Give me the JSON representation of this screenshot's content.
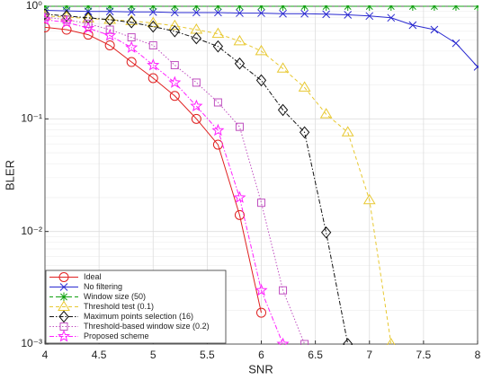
{
  "chart_data": {
    "type": "line",
    "xlabel": "SNR",
    "ylabel": "BLER",
    "x": [
      4.0,
      4.2,
      4.4,
      4.6,
      4.8,
      5.0,
      5.2,
      5.4,
      5.6,
      5.8,
      6.0,
      6.2,
      6.4,
      6.6,
      6.8,
      7.0,
      7.2,
      7.4,
      7.6,
      7.8,
      8.0
    ],
    "xlim": [
      4,
      8
    ],
    "xticks": [
      4,
      4.5,
      5,
      5.5,
      6,
      6.5,
      7,
      7.5,
      8
    ],
    "ylim": [
      0.001,
      1
    ],
    "log_y": true,
    "grid": true,
    "legend": "lower left",
    "yticks": [
      {
        "value": 0.001,
        "label": "10⁻³"
      },
      {
        "value": 0.01,
        "label": "10⁻²"
      },
      {
        "value": 0.1,
        "label": "10⁻¹"
      },
      {
        "value": 1,
        "label": "10⁰"
      }
    ],
    "series": [
      {
        "name": "Ideal",
        "color": "#e02020",
        "marker": "o",
        "linestyle": "solid",
        "values": [
          0.65,
          0.62,
          0.56,
          0.45,
          0.32,
          0.23,
          0.16,
          0.1,
          0.059,
          0.014,
          0.0019,
          null,
          null,
          null,
          null,
          null,
          null,
          null,
          null,
          null,
          null
        ]
      },
      {
        "name": "No filtering",
        "color": "#2a2ad0",
        "marker": "x",
        "linestyle": "solid",
        "values": [
          0.92,
          0.91,
          0.9,
          0.9,
          0.89,
          0.89,
          0.88,
          0.88,
          0.88,
          0.87,
          0.87,
          0.86,
          0.86,
          0.85,
          0.84,
          0.82,
          0.79,
          0.68,
          0.62,
          0.47,
          0.29
        ]
      },
      {
        "name": "Window size (50)",
        "color": "#10a010",
        "marker": "*",
        "linestyle": "dashed",
        "values": [
          1,
          1,
          1,
          1,
          1,
          1,
          1,
          1,
          1,
          1,
          1,
          1,
          1,
          1,
          1,
          1,
          1,
          1,
          1,
          1,
          1
        ]
      },
      {
        "name": "Threshold test (0.1)",
        "color": "#e8c830",
        "marker": "^",
        "linestyle": "dashed",
        "values": [
          0.82,
          0.8,
          0.78,
          0.76,
          0.74,
          0.71,
          0.67,
          0.62,
          0.57,
          0.49,
          0.4,
          0.28,
          0.19,
          0.11,
          0.076,
          0.019,
          0.001,
          null,
          null,
          null,
          null
        ]
      },
      {
        "name": "Maximum points selection (16)",
        "color": "#111111",
        "marker": "d",
        "linestyle": "dashdot",
        "values": [
          0.85,
          0.82,
          0.79,
          0.76,
          0.72,
          0.66,
          0.6,
          0.52,
          0.44,
          0.31,
          0.22,
          0.12,
          0.076,
          0.0098,
          0.001,
          null,
          null,
          null,
          null,
          null,
          null
        ]
      },
      {
        "name": "Threshold-based window size (0.2)",
        "color": "#c050c0",
        "marker": "s",
        "linestyle": "dotted",
        "values": [
          0.8,
          0.76,
          0.7,
          0.62,
          0.53,
          0.45,
          0.3,
          0.21,
          0.14,
          0.085,
          0.018,
          0.003,
          0.001,
          null,
          null,
          null,
          null,
          null,
          null,
          null,
          null
        ]
      },
      {
        "name": "Proposed scheme",
        "color": "#ff20ff",
        "marker": "p",
        "linestyle": "dashdot",
        "values": [
          0.76,
          0.72,
          0.64,
          0.55,
          0.43,
          0.3,
          0.21,
          0.13,
          0.079,
          0.02,
          0.003,
          0.001,
          null,
          null,
          null,
          null,
          null,
          null,
          null,
          null,
          null
        ]
      }
    ]
  }
}
